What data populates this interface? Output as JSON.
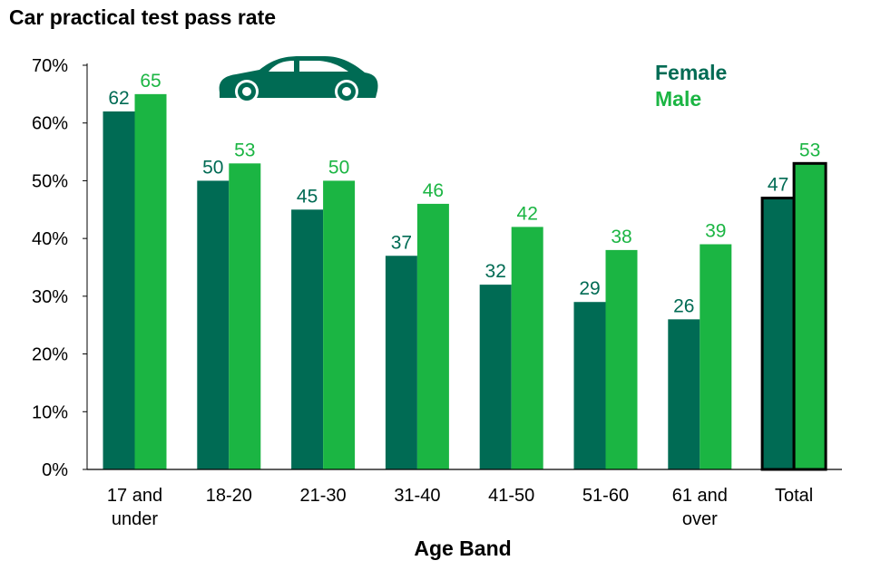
{
  "title": "Car practical test pass rate",
  "chart_data": {
    "type": "bar",
    "title": "Car practical test pass rate",
    "xlabel": "Age Band",
    "ylabel": "",
    "ylim": [
      0,
      70
    ],
    "yticks": [
      0,
      10,
      20,
      30,
      40,
      50,
      60,
      70
    ],
    "ytick_labels": [
      "0%",
      "10%",
      "20%",
      "30%",
      "40%",
      "50%",
      "60%",
      "70%"
    ],
    "categories": [
      [
        "17 and",
        "under"
      ],
      [
        "18-20"
      ],
      [
        "21-30"
      ],
      [
        "31-40"
      ],
      [
        "41-50"
      ],
      [
        "51-60"
      ],
      [
        "61 and",
        "over"
      ],
      [
        "Total"
      ]
    ],
    "series": [
      {
        "name": "Female",
        "color": "#006b54",
        "values": [
          62,
          50,
          45,
          37,
          32,
          29,
          26,
          47
        ]
      },
      {
        "name": "Male",
        "color": "#1bb543",
        "values": [
          65,
          53,
          50,
          46,
          42,
          38,
          39,
          53
        ]
      }
    ],
    "highlight_category_index": 7,
    "legend_position": "top-right",
    "decoration_icon": "car-icon"
  }
}
